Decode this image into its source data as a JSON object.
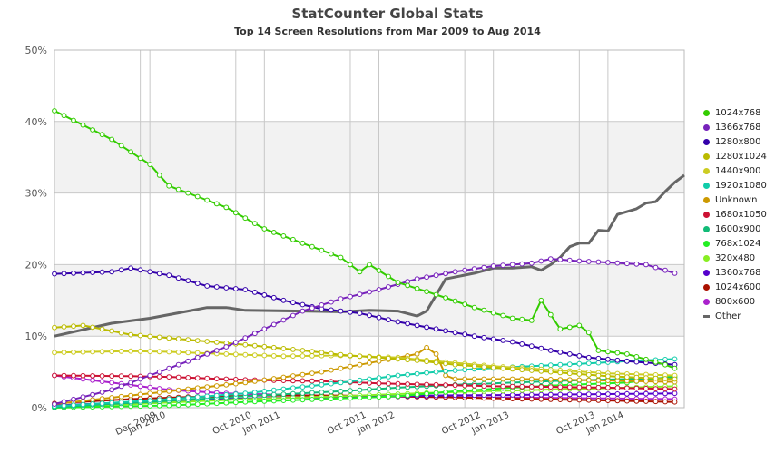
{
  "chart_data": {
    "type": "line",
    "title": "StatCounter Global Stats",
    "subtitle": "Top 14 Screen Resolutions from Mar 2009 to Aug 2014",
    "xlabel": "",
    "ylabel": "",
    "ylim": [
      0,
      50
    ],
    "y_ticks": [
      "0%",
      "10%",
      "20%",
      "30%",
      "40%",
      "50%"
    ],
    "x_ticks": [
      {
        "label": "Dec 2009",
        "month": 9
      },
      {
        "label": "Jan 2010",
        "month": 10
      },
      {
        "label": "Oct 2010",
        "month": 19
      },
      {
        "label": "Jan 2011",
        "month": 22
      },
      {
        "label": "Oct 2011",
        "month": 31
      },
      {
        "label": "Jan 2012",
        "month": 34
      },
      {
        "label": "Oct 2012",
        "month": 43
      },
      {
        "label": "Jan 2013",
        "month": 46
      },
      {
        "label": "Oct 2013",
        "month": 55
      },
      {
        "label": "Jan 2014",
        "month": 58
      }
    ],
    "x_range": [
      "Mar 2009",
      "Aug 2014"
    ],
    "months": 66,
    "grid": true,
    "legend_position": "right",
    "series": [
      {
        "name": "1024x768",
        "color": "#33cc00",
        "marker": true,
        "points": [
          [
            0,
            41.5
          ],
          [
            6,
            37.5
          ],
          [
            10,
            34
          ],
          [
            12,
            31
          ],
          [
            18,
            28
          ],
          [
            22,
            25
          ],
          [
            26,
            23
          ],
          [
            30,
            21
          ],
          [
            32,
            19
          ],
          [
            33,
            20
          ],
          [
            36,
            17.5
          ],
          [
            40,
            15.8
          ],
          [
            44,
            14
          ],
          [
            48,
            12.5
          ],
          [
            50,
            12.2
          ],
          [
            51,
            15
          ],
          [
            53,
            11
          ],
          [
            55,
            11.5
          ],
          [
            56,
            10.5
          ],
          [
            57,
            8
          ],
          [
            60,
            7.5
          ],
          [
            64,
            6
          ],
          [
            65,
            5.5
          ]
        ]
      },
      {
        "name": "1366x768",
        "color": "#7722bb",
        "marker": true,
        "points": [
          [
            0,
            0.5
          ],
          [
            6,
            2.5
          ],
          [
            12,
            5.5
          ],
          [
            18,
            8.5
          ],
          [
            22,
            11
          ],
          [
            26,
            13.5
          ],
          [
            30,
            15.2
          ],
          [
            34,
            16.5
          ],
          [
            38,
            18
          ],
          [
            42,
            19
          ],
          [
            46,
            19.8
          ],
          [
            50,
            20.2
          ],
          [
            52,
            20.8
          ],
          [
            55,
            20.5
          ],
          [
            58,
            20.3
          ],
          [
            62,
            20
          ],
          [
            65,
            18.8
          ]
        ]
      },
      {
        "name": "1280x800",
        "color": "#3300aa",
        "marker": true,
        "points": [
          [
            0,
            18.7
          ],
          [
            6,
            19
          ],
          [
            8,
            19.5
          ],
          [
            12,
            18.5
          ],
          [
            16,
            17
          ],
          [
            20,
            16.5
          ],
          [
            24,
            15
          ],
          [
            28,
            13.8
          ],
          [
            32,
            13.2
          ],
          [
            36,
            12
          ],
          [
            40,
            11
          ],
          [
            44,
            10
          ],
          [
            48,
            9.2
          ],
          [
            52,
            8
          ],
          [
            56,
            7
          ],
          [
            60,
            6.5
          ],
          [
            65,
            6
          ]
        ]
      },
      {
        "name": "1280x1024",
        "color": "#bbbb00",
        "marker": true,
        "points": [
          [
            0,
            11.2
          ],
          [
            3,
            11.5
          ],
          [
            8,
            10.2
          ],
          [
            14,
            9.5
          ],
          [
            20,
            8.8
          ],
          [
            26,
            8
          ],
          [
            30,
            7.4
          ],
          [
            34,
            7
          ],
          [
            38,
            6.6
          ],
          [
            42,
            6
          ],
          [
            46,
            5.6
          ],
          [
            52,
            5
          ],
          [
            58,
            4.4
          ],
          [
            65,
            4
          ]
        ]
      },
      {
        "name": "1440x900",
        "color": "#cccc22",
        "marker": true,
        "points": [
          [
            0,
            7.7
          ],
          [
            8,
            7.9
          ],
          [
            12,
            7.8
          ],
          [
            18,
            7.5
          ],
          [
            24,
            7.2
          ],
          [
            30,
            7.3
          ],
          [
            36,
            7
          ],
          [
            40,
            6.5
          ],
          [
            46,
            5.8
          ],
          [
            52,
            5.3
          ],
          [
            58,
            4.8
          ],
          [
            65,
            4.5
          ]
        ]
      },
      {
        "name": "1920x1080",
        "color": "#11ccaa",
        "marker": true,
        "points": [
          [
            0,
            0.2
          ],
          [
            10,
            1
          ],
          [
            20,
            2
          ],
          [
            30,
            3.5
          ],
          [
            36,
            4.5
          ],
          [
            40,
            5
          ],
          [
            44,
            5.4
          ],
          [
            50,
            5.8
          ],
          [
            56,
            6.2
          ],
          [
            60,
            6.5
          ],
          [
            65,
            6.8
          ]
        ]
      },
      {
        "name": "Unknown",
        "color": "#cc9900",
        "marker": true,
        "points": [
          [
            0,
            0.5
          ],
          [
            10,
            2
          ],
          [
            20,
            3.5
          ],
          [
            28,
            5
          ],
          [
            34,
            6.5
          ],
          [
            38,
            7.5
          ],
          [
            39,
            8.4
          ],
          [
            40,
            7.5
          ],
          [
            41,
            4.5
          ],
          [
            42,
            4
          ],
          [
            50,
            4
          ],
          [
            58,
            3.8
          ],
          [
            65,
            3.6
          ]
        ]
      },
      {
        "name": "1680x1050",
        "color": "#cc1133",
        "marker": true,
        "points": [
          [
            0,
            4.5
          ],
          [
            8,
            4.4
          ],
          [
            12,
            4.3
          ],
          [
            20,
            3.9
          ],
          [
            28,
            3.7
          ],
          [
            34,
            3.4
          ],
          [
            40,
            3.2
          ],
          [
            46,
            3
          ],
          [
            52,
            2.9
          ],
          [
            58,
            2.8
          ],
          [
            65,
            2.6
          ]
        ]
      },
      {
        "name": "1600x900",
        "color": "#11bb77",
        "marker": true,
        "points": [
          [
            0,
            0.1
          ],
          [
            10,
            0.8
          ],
          [
            20,
            1.6
          ],
          [
            30,
            2.3
          ],
          [
            36,
            2.8
          ],
          [
            42,
            3.2
          ],
          [
            48,
            3.5
          ],
          [
            54,
            3.8
          ],
          [
            60,
            4
          ],
          [
            65,
            4.2
          ]
        ]
      },
      {
        "name": "768x1024",
        "color": "#22ee22",
        "marker": true,
        "points": [
          [
            0,
            0
          ],
          [
            12,
            0.3
          ],
          [
            20,
            0.8
          ],
          [
            28,
            1.2
          ],
          [
            36,
            1.6
          ],
          [
            42,
            2.3
          ],
          [
            48,
            2.8
          ],
          [
            54,
            3.2
          ],
          [
            60,
            3.5
          ],
          [
            65,
            4.4
          ]
        ]
      },
      {
        "name": "320x480",
        "color": "#88ee22",
        "marker": true,
        "points": [
          [
            0,
            0.1
          ],
          [
            10,
            0.6
          ],
          [
            20,
            1.2
          ],
          [
            30,
            1.6
          ],
          [
            36,
            1.9
          ],
          [
            42,
            2.2
          ],
          [
            48,
            2.4
          ],
          [
            54,
            2.6
          ],
          [
            60,
            2.8
          ],
          [
            65,
            3
          ]
        ]
      },
      {
        "name": "1360x768",
        "color": "#5500cc",
        "marker": true,
        "points": [
          [
            0,
            0.3
          ],
          [
            10,
            0.9
          ],
          [
            20,
            1.3
          ],
          [
            30,
            1.5
          ],
          [
            40,
            1.7
          ],
          [
            50,
            1.8
          ],
          [
            58,
            1.9
          ],
          [
            65,
            2
          ]
        ]
      },
      {
        "name": "1024x600",
        "color": "#aa1100",
        "marker": true,
        "points": [
          [
            0,
            0.6
          ],
          [
            8,
            1.2
          ],
          [
            14,
            1.5
          ],
          [
            22,
            1.7
          ],
          [
            30,
            1.7
          ],
          [
            40,
            1.5
          ],
          [
            50,
            1.2
          ],
          [
            58,
            1
          ],
          [
            65,
            0.8
          ]
        ]
      },
      {
        "name": "800x600",
        "color": "#aa22cc",
        "marker": true,
        "points": [
          [
            0,
            4.5
          ],
          [
            6,
            3.5
          ],
          [
            12,
            2.5
          ],
          [
            18,
            2
          ],
          [
            24,
            1.8
          ],
          [
            30,
            1.6
          ],
          [
            40,
            1.5
          ],
          [
            50,
            1.4
          ],
          [
            58,
            1.3
          ],
          [
            65,
            1.2
          ]
        ]
      },
      {
        "name": "Other",
        "color": "#666666",
        "marker": false,
        "points": [
          [
            0,
            10
          ],
          [
            6,
            11.8
          ],
          [
            10,
            12.5
          ],
          [
            14,
            13.5
          ],
          [
            16,
            14
          ],
          [
            18,
            14
          ],
          [
            20,
            13.6
          ],
          [
            26,
            13.5
          ],
          [
            30,
            13.4
          ],
          [
            33,
            13.6
          ],
          [
            36,
            13.5
          ],
          [
            38,
            12.8
          ],
          [
            39,
            13.5
          ],
          [
            41,
            18
          ],
          [
            44,
            18.8
          ],
          [
            46,
            19.5
          ],
          [
            48,
            19.5
          ],
          [
            50,
            19.7
          ],
          [
            51,
            19.2
          ],
          [
            52,
            20
          ],
          [
            53,
            21
          ],
          [
            54,
            22.5
          ],
          [
            55,
            23
          ],
          [
            56,
            23
          ],
          [
            57,
            24.8
          ],
          [
            58,
            24.7
          ],
          [
            59,
            27
          ],
          [
            61,
            27.8
          ],
          [
            62,
            28.6
          ],
          [
            63,
            28.8
          ],
          [
            64,
            30.2
          ],
          [
            65,
            31.5
          ],
          [
            66,
            32.5
          ]
        ]
      }
    ]
  }
}
